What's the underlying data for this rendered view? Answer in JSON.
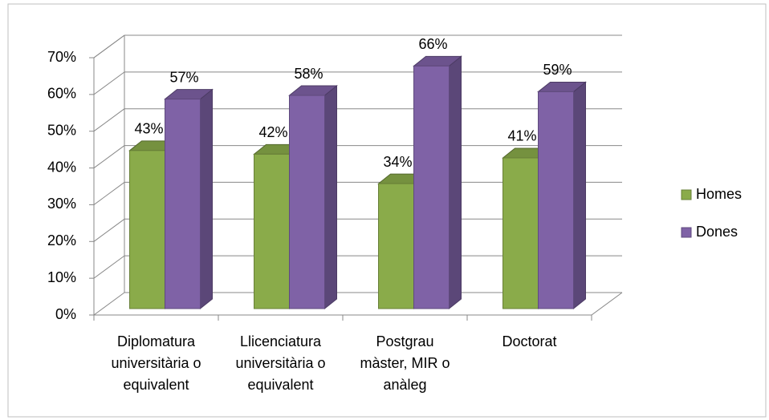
{
  "chart_data": {
    "type": "bar3d",
    "categories": [
      "Diplomatura universitària o equivalent",
      "Llicenciatura universitària o equivalent",
      "Postgrau màster, MIR o anàleg",
      "Doctorat"
    ],
    "series": [
      {
        "name": "Homes",
        "color": "#8aab4a",
        "values": [
          43,
          42,
          34,
          41
        ],
        "value_labels": [
          "43%",
          "42%",
          "34%",
          "41%"
        ]
      },
      {
        "name": "Dones",
        "color": "#7f62a6",
        "values": [
          57,
          58,
          66,
          59
        ],
        "value_labels": [
          "57%",
          "58%",
          "66%",
          "59%"
        ]
      }
    ],
    "ylim": [
      0,
      70
    ],
    "yticks": [
      {
        "value": 0,
        "label": "0%"
      },
      {
        "value": 10,
        "label": "10%"
      },
      {
        "value": 20,
        "label": "20%"
      },
      {
        "value": 30,
        "label": "30%"
      },
      {
        "value": 40,
        "label": "40%"
      },
      {
        "value": 50,
        "label": "50%"
      },
      {
        "value": 60,
        "label": "60%"
      },
      {
        "value": 70,
        "label": "70%"
      }
    ],
    "grid": true,
    "legend": "right"
  }
}
